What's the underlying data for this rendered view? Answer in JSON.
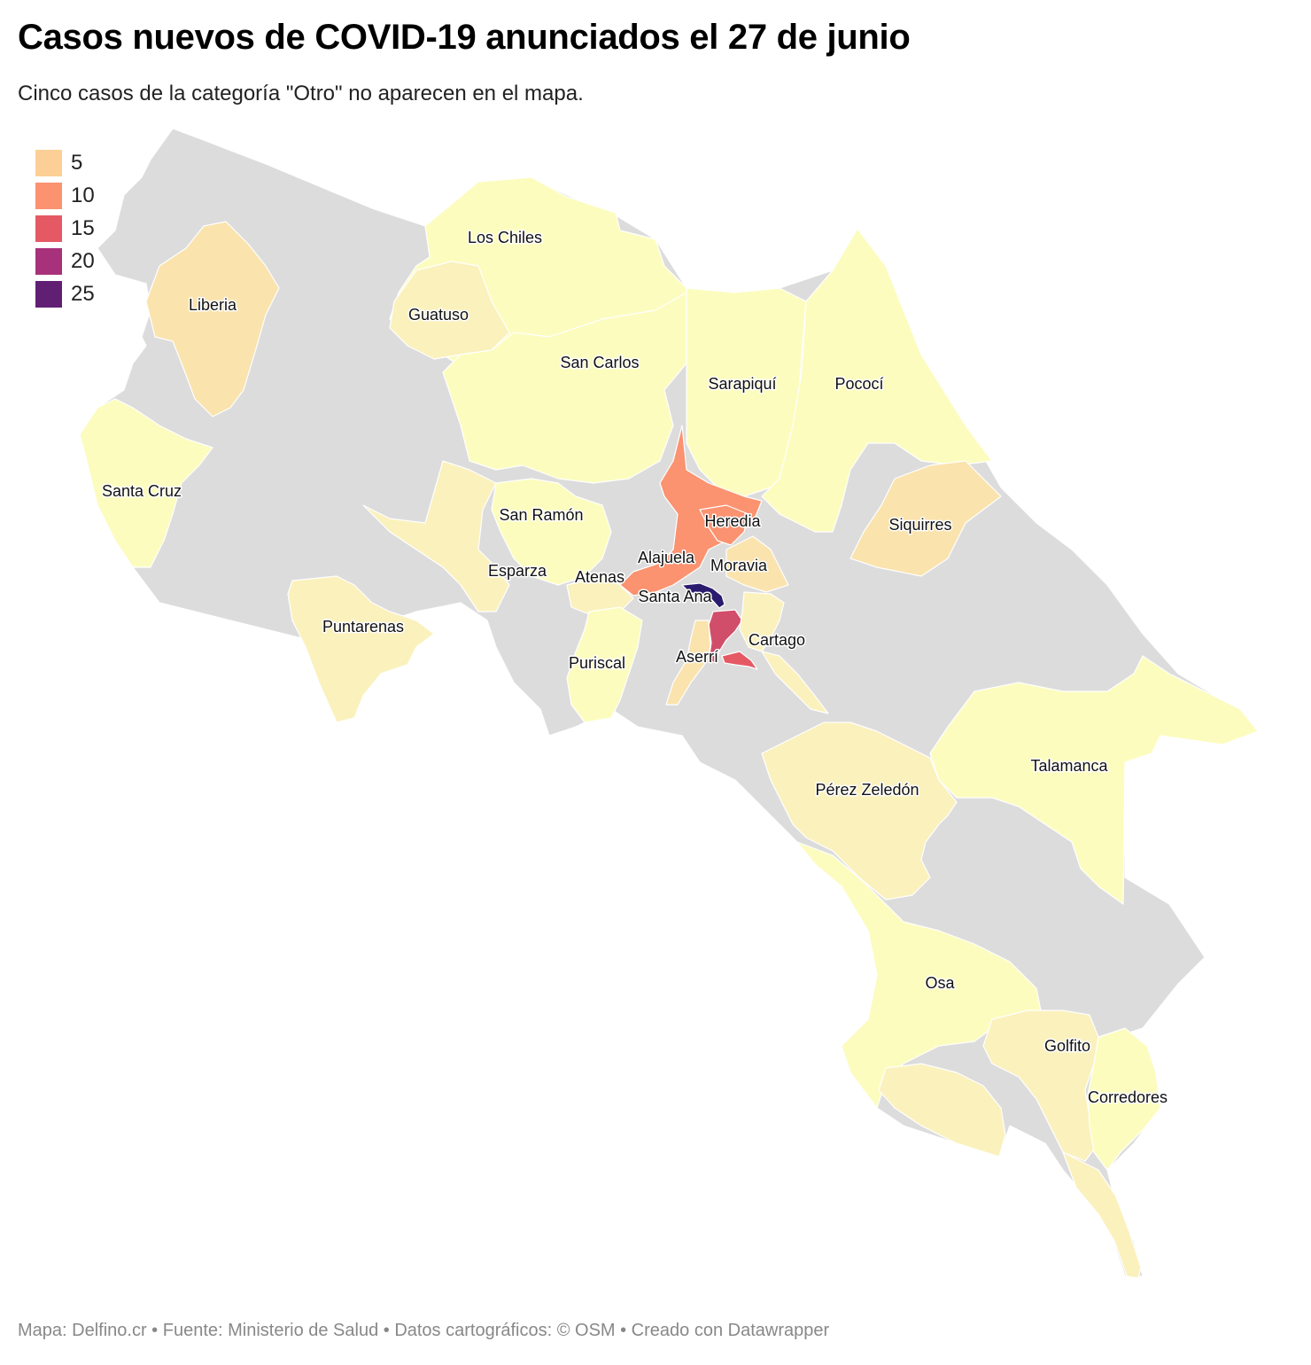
{
  "title": "Casos nuevos de COVID-19 anunciados el 27 de junio",
  "subtitle": "Cinco casos de la categoría \"Otro\" no aparecen en el mapa.",
  "legend": {
    "items": [
      {
        "label": "5",
        "color": "#fccf96"
      },
      {
        "label": "10",
        "color": "#fb9270"
      },
      {
        "label": "15",
        "color": "#e55964"
      },
      {
        "label": "20",
        "color": "#a8317b"
      },
      {
        "label": "25",
        "color": "#611f74"
      }
    ]
  },
  "colors": {
    "no_data": "#dcdcdc",
    "level_1": "#fcfcbf",
    "level_2": "#fbf1bd",
    "level_3": "#fae3ad",
    "level_4": "#fb9270",
    "level_5": "#e55964",
    "level_6": "#d14e6a",
    "level_7": "#2b1b6e"
  },
  "map_labels": {
    "los_chiles": "Los Chiles",
    "liberia": "Liberia",
    "guatuso": "Guatuso",
    "san_carlos": "San Carlos",
    "sarapiqui": "Sarapiquí",
    "pococi": "Pococí",
    "santa_cruz": "Santa Cruz",
    "san_ramon": "San Ramón",
    "heredia": "Heredia",
    "siquirres": "Siquirres",
    "alajuela": "Alajuela",
    "esparza": "Esparza",
    "moravia": "Moravia",
    "atenas": "Atenas",
    "santa_ana": "Santa Ana",
    "puntarenas": "Puntarenas",
    "cartago": "Cartago",
    "aserri": "Aserrí",
    "puriscal": "Puriscal",
    "talamanca": "Talamanca",
    "perez_zeledon": "Pérez Zeledón",
    "osa": "Osa",
    "golfito": "Golfito",
    "corredores": "Corredores"
  },
  "footer": "Mapa: Delfino.cr • Fuente: Ministerio de Salud • Datos cartográficos: © OSM • Creado con Datawrapper"
}
